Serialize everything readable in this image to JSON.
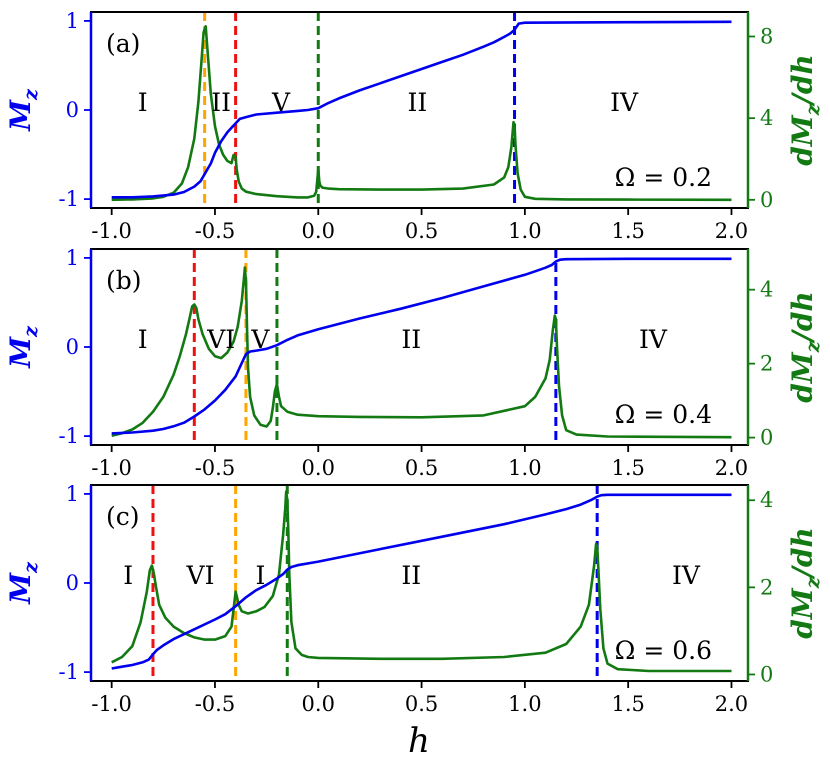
{
  "chart_data": {
    "type": "line",
    "xlabel": "h",
    "ylabel_left": "M_z",
    "ylabel_right": "dM_z/dh",
    "xlim": [
      -1.1,
      2.08
    ],
    "x_ticks": [
      -1.0,
      -0.5,
      0.0,
      0.5,
      1.0,
      1.5,
      2.0
    ],
    "x_tick_labels": [
      "-1.0",
      "-0.5",
      "0.0",
      "0.5",
      "1.0",
      "1.5",
      "2.0"
    ],
    "left_ylim": [
      -1.1,
      1.1
    ],
    "left_ticks": [
      -1,
      0,
      1
    ],
    "left_tick_labels": [
      "-1",
      "0",
      "1"
    ],
    "colors": {
      "mz": "#0000ee",
      "dmz": "#137a13",
      "red": "#ee1111",
      "orange": "#ffa500",
      "green_dash": "#137a13",
      "blue_dash": "#0000ee",
      "left_axis": "#0000ee",
      "right_axis": "#137a13"
    },
    "panels": [
      {
        "tag": "(a)",
        "omega_label": "Ω = 0.2",
        "right_ylim": [
          -0.4,
          9.2
        ],
        "right_ticks": [
          0,
          4,
          8
        ],
        "right_tick_labels": [
          "0",
          "4",
          "8"
        ],
        "vlines": [
          {
            "x": -0.55,
            "color": "orange"
          },
          {
            "x": -0.4,
            "color": "red"
          },
          {
            "x": 0.0,
            "color": "green_dash"
          },
          {
            "x": 0.95,
            "color": "blue_dash"
          }
        ],
        "regions": [
          {
            "label": "I",
            "x": -0.85
          },
          {
            "label": "II",
            "x": -0.47
          },
          {
            "label": "V",
            "x": -0.18
          },
          {
            "label": "II",
            "x": 0.48
          },
          {
            "label": "IV",
            "x": 1.48
          }
        ],
        "mz": {
          "x": [
            -1.0,
            -0.9,
            -0.8,
            -0.7,
            -0.65,
            -0.6,
            -0.57,
            -0.55,
            -0.52,
            -0.5,
            -0.47,
            -0.44,
            -0.42,
            -0.4,
            -0.38,
            -0.35,
            -0.3,
            -0.2,
            -0.1,
            -0.05,
            0.0,
            0.05,
            0.1,
            0.2,
            0.3,
            0.4,
            0.5,
            0.6,
            0.7,
            0.8,
            0.85,
            0.9,
            0.93,
            0.95,
            0.97,
            1.0,
            1.5,
            2.0
          ],
          "y": [
            -0.98,
            -0.98,
            -0.97,
            -0.95,
            -0.92,
            -0.86,
            -0.8,
            -0.72,
            -0.6,
            -0.48,
            -0.35,
            -0.25,
            -0.2,
            -0.15,
            -0.1,
            -0.08,
            -0.05,
            -0.03,
            -0.01,
            0.0,
            0.02,
            0.08,
            0.13,
            0.22,
            0.3,
            0.38,
            0.46,
            0.54,
            0.62,
            0.71,
            0.76,
            0.82,
            0.86,
            0.9,
            0.97,
            0.98,
            0.985,
            0.99
          ]
        },
        "dmz": {
          "x": [
            -1.0,
            -0.9,
            -0.8,
            -0.75,
            -0.7,
            -0.66,
            -0.63,
            -0.6,
            -0.58,
            -0.565,
            -0.555,
            -0.545,
            -0.535,
            -0.52,
            -0.5,
            -0.48,
            -0.46,
            -0.44,
            -0.42,
            -0.41,
            -0.4,
            -0.395,
            -0.385,
            -0.37,
            -0.35,
            -0.3,
            -0.2,
            -0.1,
            -0.05,
            -0.02,
            -0.01,
            0.0,
            0.005,
            0.01,
            0.02,
            0.05,
            0.1,
            0.3,
            0.5,
            0.7,
            0.85,
            0.9,
            0.92,
            0.935,
            0.945,
            0.95,
            0.955,
            0.965,
            0.98,
            1.0,
            1.05,
            1.2,
            1.5,
            2.0
          ],
          "y": [
            0.0,
            0.02,
            0.07,
            0.15,
            0.35,
            0.8,
            1.6,
            3.0,
            4.8,
            6.8,
            8.2,
            8.5,
            7.2,
            5.2,
            3.6,
            2.7,
            2.2,
            1.9,
            1.8,
            2.2,
            2.1,
            1.5,
            0.9,
            0.55,
            0.4,
            0.28,
            0.18,
            0.12,
            0.12,
            0.2,
            0.4,
            1.5,
            0.9,
            0.7,
            0.6,
            0.55,
            0.52,
            0.5,
            0.5,
            0.55,
            0.75,
            1.1,
            1.6,
            2.6,
            3.8,
            3.7,
            2.6,
            1.3,
            0.5,
            0.15,
            0.05,
            0.02,
            0.01,
            0.0
          ]
        }
      },
      {
        "tag": "(b)",
        "omega_label": "Ω = 0.4",
        "right_ylim": [
          -0.2,
          5.1
        ],
        "right_ticks": [
          0,
          2,
          4
        ],
        "right_tick_labels": [
          "0",
          "2",
          "4"
        ],
        "vlines": [
          {
            "x": -0.6,
            "color": "red"
          },
          {
            "x": -0.35,
            "color": "orange"
          },
          {
            "x": -0.2,
            "color": "green_dash"
          },
          {
            "x": 1.15,
            "color": "blue_dash"
          }
        ],
        "regions": [
          {
            "label": "I",
            "x": -0.85
          },
          {
            "label": "VI",
            "x": -0.47
          },
          {
            "label": "V",
            "x": -0.28
          },
          {
            "label": "II",
            "x": 0.45
          },
          {
            "label": "IV",
            "x": 1.62
          }
        ],
        "mz": {
          "x": [
            -1.0,
            -0.9,
            -0.8,
            -0.75,
            -0.7,
            -0.65,
            -0.6,
            -0.55,
            -0.5,
            -0.45,
            -0.4,
            -0.37,
            -0.35,
            -0.33,
            -0.3,
            -0.25,
            -0.2,
            -0.15,
            -0.1,
            0.0,
            0.2,
            0.4,
            0.6,
            0.8,
            1.0,
            1.05,
            1.1,
            1.13,
            1.15,
            1.17,
            1.2,
            1.5,
            2.0
          ],
          "y": [
            -0.97,
            -0.96,
            -0.94,
            -0.92,
            -0.89,
            -0.85,
            -0.78,
            -0.7,
            -0.6,
            -0.48,
            -0.33,
            -0.18,
            -0.08,
            -0.05,
            -0.04,
            -0.02,
            0.02,
            0.08,
            0.13,
            0.2,
            0.32,
            0.43,
            0.55,
            0.68,
            0.81,
            0.85,
            0.89,
            0.92,
            0.96,
            0.98,
            0.985,
            0.99,
            0.99
          ]
        },
        "dmz": {
          "x": [
            -1.0,
            -0.95,
            -0.9,
            -0.85,
            -0.8,
            -0.75,
            -0.7,
            -0.67,
            -0.64,
            -0.62,
            -0.61,
            -0.6,
            -0.59,
            -0.58,
            -0.56,
            -0.53,
            -0.5,
            -0.47,
            -0.44,
            -0.41,
            -0.39,
            -0.37,
            -0.36,
            -0.355,
            -0.35,
            -0.345,
            -0.34,
            -0.33,
            -0.31,
            -0.28,
            -0.25,
            -0.23,
            -0.22,
            -0.21,
            -0.2,
            -0.19,
            -0.18,
            -0.15,
            -0.1,
            0.0,
            0.2,
            0.5,
            0.8,
            1.0,
            1.05,
            1.1,
            1.12,
            1.135,
            1.145,
            1.15,
            1.155,
            1.165,
            1.18,
            1.2,
            1.25,
            1.4,
            2.0
          ],
          "y": [
            0.05,
            0.12,
            0.22,
            0.4,
            0.7,
            1.1,
            1.7,
            2.2,
            2.8,
            3.3,
            3.55,
            3.6,
            3.5,
            3.2,
            2.8,
            2.4,
            2.2,
            2.15,
            2.3,
            2.6,
            3.0,
            3.7,
            4.3,
            4.6,
            4.2,
            3.0,
            1.9,
            1.1,
            0.6,
            0.35,
            0.3,
            0.45,
            0.8,
            1.25,
            1.45,
            1.1,
            0.85,
            0.7,
            0.62,
            0.58,
            0.56,
            0.55,
            0.6,
            0.85,
            1.1,
            1.6,
            2.1,
            2.9,
            3.3,
            3.2,
            2.5,
            1.4,
            0.6,
            0.2,
            0.08,
            0.03,
            0.01
          ]
        }
      },
      {
        "tag": "(c)",
        "omega_label": "Ω = 0.6",
        "right_ylim": [
          -0.15,
          4.35
        ],
        "right_ticks": [
          0,
          2,
          4
        ],
        "right_tick_labels": [
          "0",
          "2",
          "4"
        ],
        "vlines": [
          {
            "x": -0.8,
            "color": "red"
          },
          {
            "x": -0.4,
            "color": "orange"
          },
          {
            "x": -0.15,
            "color": "green_dash"
          },
          {
            "x": 1.35,
            "color": "blue_dash"
          }
        ],
        "regions": [
          {
            "label": "I",
            "x": -0.92
          },
          {
            "label": "VI",
            "x": -0.57
          },
          {
            "label": "I",
            "x": -0.28
          },
          {
            "label": "II",
            "x": 0.45
          },
          {
            "label": "IV",
            "x": 1.78
          }
        ],
        "mz": {
          "x": [
            -1.0,
            -0.95,
            -0.9,
            -0.85,
            -0.82,
            -0.8,
            -0.78,
            -0.75,
            -0.7,
            -0.6,
            -0.5,
            -0.45,
            -0.4,
            -0.35,
            -0.3,
            -0.25,
            -0.2,
            -0.17,
            -0.15,
            -0.13,
            -0.1,
            0.0,
            0.3,
            0.6,
            0.9,
            1.1,
            1.2,
            1.27,
            1.32,
            1.35,
            1.37,
            1.4,
            1.6,
            2.0
          ],
          "y": [
            -0.96,
            -0.94,
            -0.92,
            -0.89,
            -0.86,
            -0.8,
            -0.75,
            -0.7,
            -0.63,
            -0.52,
            -0.41,
            -0.35,
            -0.26,
            -0.16,
            -0.08,
            -0.02,
            0.05,
            0.1,
            0.15,
            0.18,
            0.2,
            0.24,
            0.38,
            0.52,
            0.66,
            0.77,
            0.83,
            0.88,
            0.93,
            0.97,
            0.985,
            0.99,
            0.99,
            0.99
          ]
        },
        "dmz": {
          "x": [
            -1.0,
            -0.95,
            -0.9,
            -0.86,
            -0.83,
            -0.815,
            -0.805,
            -0.8,
            -0.795,
            -0.785,
            -0.77,
            -0.74,
            -0.7,
            -0.65,
            -0.6,
            -0.55,
            -0.5,
            -0.45,
            -0.42,
            -0.41,
            -0.4,
            -0.395,
            -0.385,
            -0.37,
            -0.34,
            -0.3,
            -0.26,
            -0.22,
            -0.19,
            -0.17,
            -0.16,
            -0.155,
            -0.15,
            -0.145,
            -0.14,
            -0.13,
            -0.11,
            -0.08,
            -0.05,
            0.0,
            0.3,
            0.6,
            0.9,
            1.1,
            1.2,
            1.27,
            1.31,
            1.335,
            1.345,
            1.35,
            1.355,
            1.365,
            1.38,
            1.4,
            1.45,
            1.6,
            2.0
          ],
          "y": [
            0.28,
            0.4,
            0.65,
            1.2,
            1.9,
            2.4,
            2.5,
            2.4,
            2.3,
            2.0,
            1.6,
            1.3,
            1.1,
            0.95,
            0.85,
            0.8,
            0.8,
            0.88,
            1.1,
            1.5,
            1.9,
            1.8,
            1.6,
            1.45,
            1.4,
            1.45,
            1.55,
            1.8,
            2.3,
            3.2,
            3.8,
            4.2,
            4.0,
            3.3,
            2.3,
            1.2,
            0.6,
            0.45,
            0.4,
            0.38,
            0.36,
            0.36,
            0.4,
            0.5,
            0.7,
            1.1,
            1.6,
            2.5,
            3.0,
            2.95,
            2.5,
            1.5,
            0.6,
            0.25,
            0.12,
            0.08,
            0.08
          ]
        }
      }
    ]
  }
}
